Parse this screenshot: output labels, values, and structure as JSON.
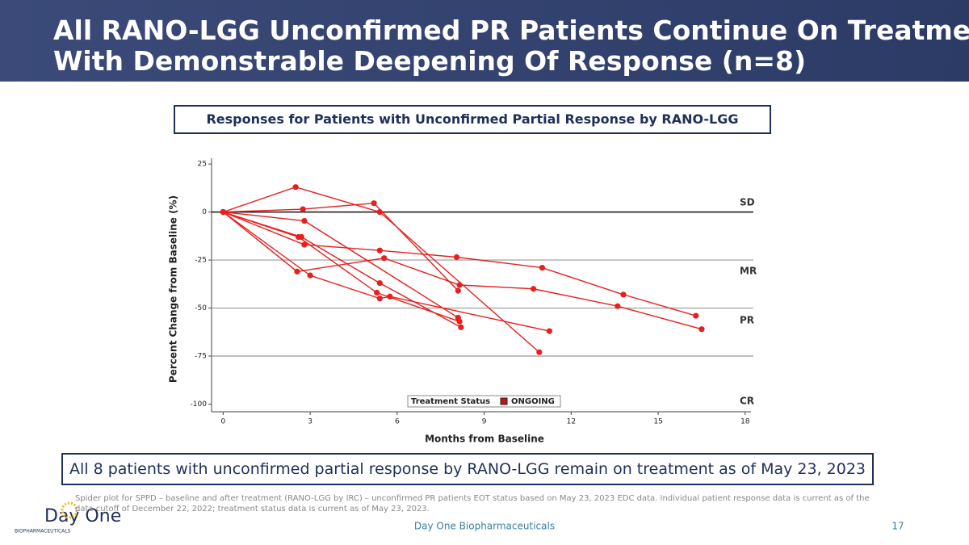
{
  "header": {
    "title_line1": "All RANO-LGG Unconfirmed PR Patients Continue On Treatment",
    "title_line2": "With Demonstrable Deepening Of Response (n=8)"
  },
  "chart_data": {
    "type": "spider",
    "title": "Responses for Patients with Unconfirmed Partial Response by RANO-LGG",
    "xlabel": "Months from Baseline",
    "ylabel": "Percent Change from Baseline (%)",
    "xlim": [
      -0.4,
      18.2
    ],
    "xticks": [
      0,
      3,
      6,
      9,
      12,
      15,
      18
    ],
    "ylim": [
      -104,
      28
    ],
    "yticks": [
      25,
      0,
      -25,
      -50,
      -75,
      -100
    ],
    "reference_lines": [
      0,
      -25,
      -50,
      -75
    ],
    "zone_labels": [
      "SD",
      "MR",
      "PR",
      "CR"
    ],
    "color": "#e5201e",
    "legend": {
      "title": "Treatment Status",
      "label": "ONGOING",
      "color": "#c0141a"
    },
    "series": [
      {
        "x": [
          0,
          2.75,
          5.2,
          8.1
        ],
        "values": [
          0,
          1.5,
          4.6,
          -41
        ]
      },
      {
        "x": [
          0,
          2.5,
          5.4,
          10.9
        ],
        "values": [
          0,
          13,
          0,
          -73
        ]
      },
      {
        "x": [
          0,
          2.8,
          8.1
        ],
        "values": [
          0,
          -4.6,
          -55
        ]
      },
      {
        "x": [
          0,
          2.6,
          5.3,
          8.15
        ],
        "values": [
          0,
          -13,
          -42,
          -57
        ]
      },
      {
        "x": [
          0,
          2.7,
          5.4,
          8.2
        ],
        "values": [
          0,
          -13,
          -37,
          -60
        ]
      },
      {
        "x": [
          0,
          2.8,
          5.4,
          8.05,
          11,
          13.8,
          16.3
        ],
        "values": [
          0,
          -17,
          -20,
          -23.5,
          -29,
          -43,
          -54
        ]
      },
      {
        "x": [
          0,
          2.55,
          5.55,
          8.15,
          10.7,
          13.6,
          16.5
        ],
        "values": [
          0,
          -31,
          -24,
          -38,
          -40,
          -49,
          -61
        ]
      },
      {
        "x": [
          0,
          3,
          5.4,
          5.75,
          11.25
        ],
        "values": [
          0,
          -33,
          -45,
          -44,
          -62
        ]
      }
    ]
  },
  "callout": "All 8 patients with unconfirmed partial response by RANO-LGG remain on treatment as of May 23, 2023",
  "footnote": "Spider plot for SPPD – baseline and after treatment (RANO-LGG by IRC) – unconfirmed PR patients EOT status based on May 23, 2023 EDC data. Individual patient response data is current as of the data cutoff of December 22, 2022; treatment status data is current as of May 23, 2023.",
  "logo": {
    "name": "Day One",
    "tagline": "BIOPHARMACEUTICALS"
  },
  "footer": {
    "company": "Day One Biopharmaceuticals",
    "page": "17"
  }
}
